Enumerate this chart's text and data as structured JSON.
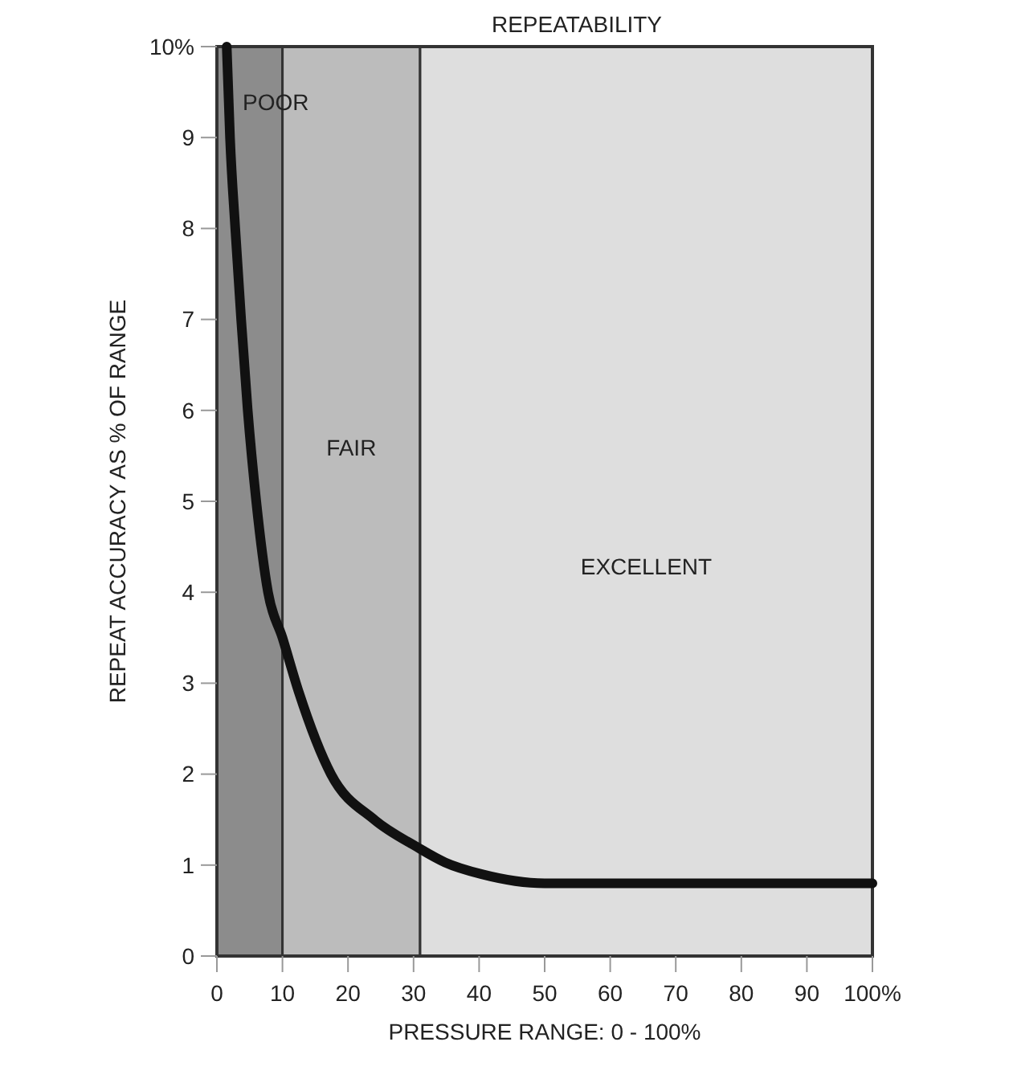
{
  "chart_data": {
    "type": "line",
    "title": "REPEATABILITY",
    "xlabel": "PRESSURE RANGE:  0 - 100%",
    "ylabel": "REPEAT ACCURACY AS % OF RANGE",
    "x": [
      1.5,
      2.0,
      2.8,
      3.7,
      4.7,
      6.0,
      7.8,
      10,
      12.5,
      17.4,
      24,
      30.5,
      34.8,
      40.4,
      50,
      60,
      70,
      80,
      90,
      100
    ],
    "series": [
      {
        "color": "#111111",
        "values": [
          10,
          9,
          8,
          7,
          6,
          5,
          4,
          3.5,
          2.9,
          2,
          1.5,
          1.2,
          1.03,
          0.9,
          0.8,
          0.8,
          0.8,
          0.8,
          0.8,
          0.8
        ]
      }
    ],
    "xlim": [
      0,
      100
    ],
    "xticks": [
      0,
      10,
      20,
      30,
      40,
      50,
      60,
      70,
      80,
      90,
      {
        "value": 100,
        "label": "100%"
      }
    ],
    "ylim": [
      0,
      10
    ],
    "yticks": [
      0,
      1,
      2,
      3,
      4,
      5,
      6,
      7,
      8,
      9,
      {
        "value": 10,
        "label": "10%"
      }
    ],
    "bands": [
      {
        "axis": "x",
        "from": 0,
        "to": 10,
        "label": "POOR",
        "color": "#8c8c8c"
      },
      {
        "axis": "x",
        "from": 10,
        "to": 31,
        "label": "FAIR",
        "color": "#bcbcbc"
      },
      {
        "axis": "x",
        "from": 31,
        "to": 100,
        "label": "EXCELLENT",
        "color": "#dedede"
      }
    ],
    "grid": false,
    "marker": "none",
    "line_style": "solid"
  }
}
